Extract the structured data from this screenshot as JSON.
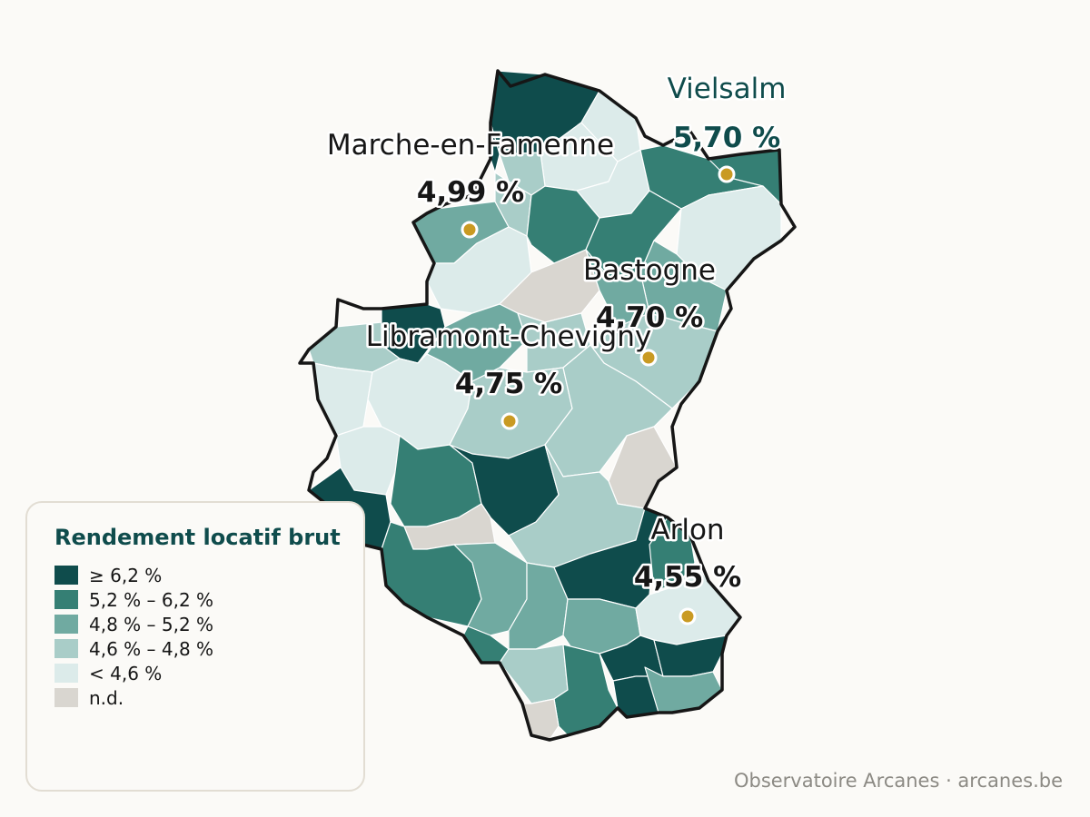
{
  "legend": {
    "title": "Rendement locatif brut",
    "classes": [
      {
        "label": "≥ 6,2 %",
        "color": "#0f4c4c"
      },
      {
        "label": "5,2 % – 6,2 %",
        "color": "#357f74"
      },
      {
        "label": "4,8 % – 5,2 %",
        "color": "#70aaa1"
      },
      {
        "label": "4,6 % – 4,8 %",
        "color": "#a9cdc8"
      },
      {
        "label": "< 4,6 %",
        "color": "#dcebea"
      },
      {
        "label": "n.d.",
        "color": "#d9d6d0"
      }
    ]
  },
  "cities": [
    {
      "name": "Vielsalm",
      "value": "5,70 %"
    },
    {
      "name": "Marche-en-Famenne",
      "value": "4,99 %"
    },
    {
      "name": "Bastogne",
      "value": "4,70 %"
    },
    {
      "name": "Libramont-Chevigny",
      "value": "4,75 %"
    },
    {
      "name": "Arlon",
      "value": "4,55 %"
    }
  ],
  "credit": "Observatoire Arcanes · arcanes.be",
  "colors": {
    "marker": "#c99a22",
    "outline": "#161616",
    "accent": "#0f4c4c"
  }
}
